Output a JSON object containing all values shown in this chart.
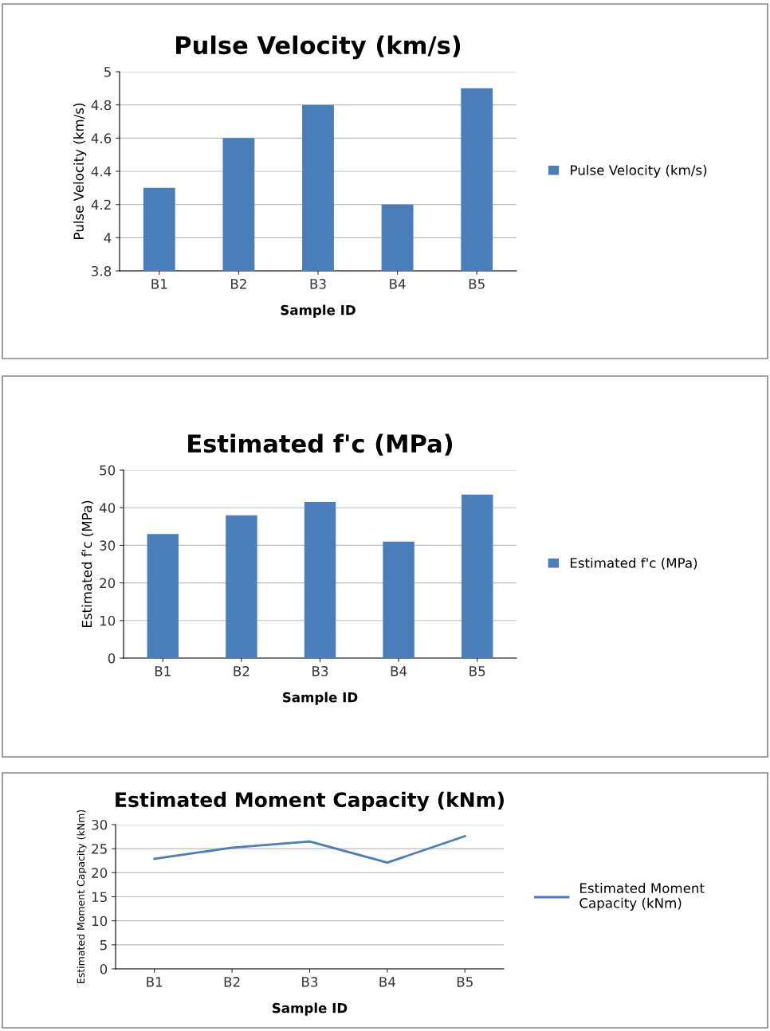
{
  "chart_data": [
    {
      "type": "bar",
      "title": "Pulse Velocity (km/s)",
      "xlabel": "Sample ID",
      "ylabel": "Pulse Velocity (km/s)",
      "categories": [
        "B1",
        "B2",
        "B3",
        "B4",
        "B5"
      ],
      "series": [
        {
          "name": "Pulse Velocity (km/s)",
          "color": "#4a7ebb",
          "values": [
            4.3,
            4.6,
            4.8,
            4.2,
            4.9
          ]
        }
      ],
      "ylim": [
        3.8,
        5
      ],
      "yticks": [
        {
          "value": 3.8,
          "label": "3.8"
        },
        {
          "value": 4,
          "label": "4"
        },
        {
          "value": 4.2,
          "label": "4.2"
        },
        {
          "value": 4.4,
          "label": "4.4"
        },
        {
          "value": 4.6,
          "label": "4.6"
        },
        {
          "value": 4.8,
          "label": "4.8"
        },
        {
          "value": 5,
          "label": "5"
        }
      ],
      "grid": "y",
      "legend": "right"
    },
    {
      "type": "bar",
      "title": "Estimated f'c (MPa)",
      "xlabel": "Sample ID",
      "ylabel": "Estimated f'c (MPa)",
      "categories": [
        "B1",
        "B2",
        "B3",
        "B4",
        "B5"
      ],
      "series": [
        {
          "name": "Estimated f'c (MPa)",
          "color": "#4a7ebb",
          "values": [
            33,
            38,
            41.5,
            31,
            43.5
          ]
        }
      ],
      "ylim": [
        0,
        50
      ],
      "yticks": [
        0,
        10,
        20,
        30,
        40,
        50
      ],
      "grid": "y",
      "legend": "right"
    },
    {
      "type": "line",
      "title": "Estimated Moment Capacity (kNm)",
      "xlabel": "Sample ID",
      "ylabel": "Estimated Moment Capacity (kNm)",
      "categories": [
        "B1",
        "B2",
        "B3",
        "B4",
        "B5"
      ],
      "series": [
        {
          "name": "Estimated Moment\nCapacity (kNm)",
          "color": "#4a7ebb",
          "values": [
            22.9,
            25.2,
            26.5,
            22.1,
            27.6
          ]
        }
      ],
      "ylim": [
        0,
        30
      ],
      "yticks": [
        0,
        5,
        10,
        15,
        20,
        25,
        30
      ],
      "grid": "y",
      "legend": "right"
    }
  ]
}
